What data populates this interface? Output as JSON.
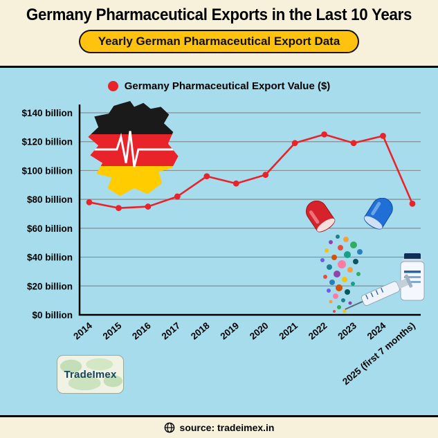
{
  "header": {
    "title": "Germany Pharmaceutical Exports in the Last 10 Years",
    "badge": "Yearly German Pharmaceutical Export Data"
  },
  "legend": {
    "label": "Germany Pharmaceutical Export Value ($)"
  },
  "chart_data": {
    "type": "line",
    "title": "Germany Pharmaceutical Export Value ($)",
    "categories": [
      "2014",
      "2015",
      "2016",
      "2017",
      "2018",
      "2019",
      "2020",
      "2021",
      "2022",
      "2023",
      "2024",
      "2025 (first 7 months)"
    ],
    "values": [
      78,
      74,
      75,
      82,
      96,
      91,
      97,
      119,
      125,
      119,
      124,
      77
    ],
    "ylim": [
      0,
      140
    ],
    "ytick_step": 20,
    "ytick_labels": [
      "$0 billion",
      "$20 billion",
      "$40 billion",
      "$60 billion",
      "$80 billion",
      "$100 billion",
      "$120 billion",
      "$140 billion"
    ],
    "line_color": "#e8232a",
    "grid": true,
    "legend_position": "top"
  },
  "illustrations": [
    "germany-flag-map-with-heartbeat-line",
    "open-capsule-spilling-pills",
    "syringe-and-vial"
  ],
  "icons": {
    "legend_marker": "red-dot-icon",
    "footer_marker": "globe-icon"
  },
  "logo": {
    "text": "TradeImex"
  },
  "footer": {
    "source": "source: tradeimex.in"
  },
  "colors": {
    "background": "#f7f1dc",
    "panel": "#a6dcec",
    "badge": "#ffc20e",
    "line": "#e8232a"
  }
}
